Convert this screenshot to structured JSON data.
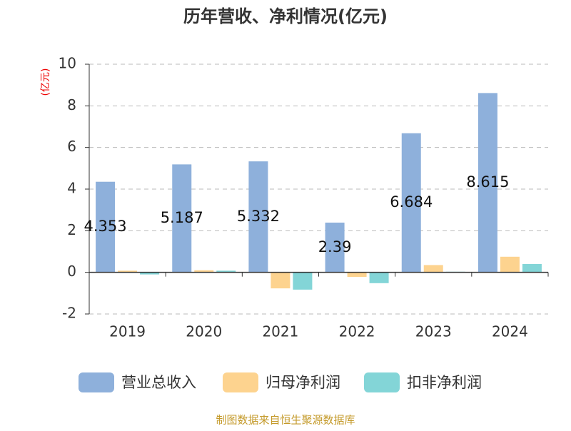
{
  "chart_data": {
    "type": "bar",
    "title": "历年营收、净利情况(亿元)",
    "y_label": "(亿元)",
    "source": "制图数据来自恒生聚源数据库",
    "categories": [
      "2019",
      "2020",
      "2021",
      "2022",
      "2023",
      "2024"
    ],
    "series": [
      {
        "name": "营业总收入",
        "color": "#8eb0db",
        "values": [
          4.353,
          5.187,
          5.332,
          2.39,
          6.684,
          8.615
        ]
      },
      {
        "name": "归母净利润",
        "color": "#fdd38f",
        "values": [
          0.08,
          0.1,
          -0.77,
          -0.22,
          0.35,
          0.75
        ]
      },
      {
        "name": "扣非净利润",
        "color": "#83d5d7",
        "values": [
          -0.1,
          0.08,
          -0.83,
          -0.52,
          0.03,
          0.4
        ]
      }
    ],
    "labeled_series": 0,
    "ylim": [
      -2,
      10
    ],
    "yticks": [
      -2,
      0,
      2,
      4,
      6,
      8,
      10
    ],
    "grid": true
  }
}
